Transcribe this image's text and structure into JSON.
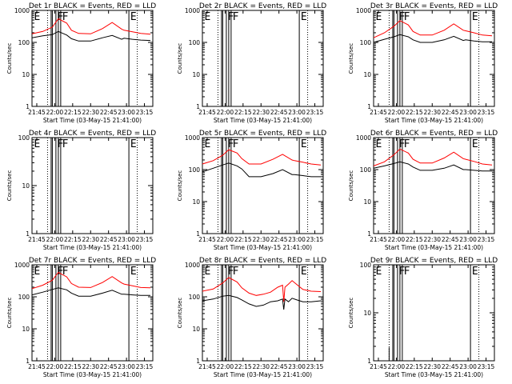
{
  "chart_data": [
    {
      "type": "line",
      "title": "Det 1r BLACK = Events, RED = LLD",
      "xlabel": "Start Time (03-May-15 21:41:00)",
      "ylabel": "Counts/sec",
      "y_log": true,
      "ylim": [
        1,
        1000
      ],
      "xlim": [
        "21:41",
        "23:22"
      ],
      "x_ticks": [
        "21:45",
        "22:00",
        "22:15",
        "22:30",
        "22:45",
        "23:00",
        "23:15"
      ],
      "y_ticks": [
        "1",
        "10",
        "100",
        "1000"
      ],
      "flags": [
        "E",
        "F",
        "F",
        "E"
      ],
      "series": [
        {
          "color": "#000000",
          "x": [
            "21:41",
            "21:50",
            "21:58",
            "22:03",
            "22:10",
            "22:14",
            "22:20",
            "22:30",
            "22:40",
            "22:48",
            "22:56",
            "22:58",
            "23:05",
            "23:12",
            "23:20"
          ],
          "y": [
            140,
            160,
            175,
            220,
            170,
            130,
            110,
            110,
            140,
            165,
            125,
            135,
            125,
            118,
            115
          ]
        },
        {
          "color": "#ff0000",
          "x": [
            "21:41",
            "21:50",
            "21:58",
            "22:03",
            "22:10",
            "22:14",
            "22:20",
            "22:30",
            "22:40",
            "22:48",
            "22:56",
            "22:58",
            "23:05",
            "23:12",
            "23:20"
          ],
          "y": [
            185,
            220,
            300,
            550,
            400,
            240,
            190,
            185,
            270,
            420,
            260,
            240,
            215,
            190,
            180
          ]
        }
      ]
    },
    {
      "type": "line",
      "title": "Det 2r BLACK = Events, RED = LLD",
      "xlabel": "Start Time (03-May-15 21:41:00)",
      "ylabel": "Counts/sec",
      "y_log": true,
      "ylim": [
        1,
        1000
      ],
      "xlim": [
        "21:41",
        "23:22"
      ],
      "x_ticks": [
        "21:45",
        "22:00",
        "22:15",
        "22:30",
        "22:45",
        "23:00",
        "23:15"
      ],
      "y_ticks": [
        "1",
        "10",
        "100",
        "1000"
      ],
      "flags": [
        "E",
        "F",
        "F",
        "E"
      ],
      "series": []
    },
    {
      "type": "line",
      "title": "Det 3r BLACK = Events, RED = LLD",
      "xlabel": "Start Time (03-May-15 21:41:00)",
      "ylabel": "Counts/sec",
      "y_log": true,
      "ylim": [
        1,
        1000
      ],
      "xlim": [
        "21:41",
        "23:22"
      ],
      "x_ticks": [
        "21:45",
        "22:00",
        "22:15",
        "22:30",
        "22:45",
        "23:00",
        "23:15"
      ],
      "y_ticks": [
        "1",
        "10",
        "100",
        "1000"
      ],
      "flags": [
        "E",
        "F",
        "F",
        "E"
      ],
      "series": [
        {
          "color": "#000000",
          "x": [
            "21:41",
            "21:50",
            "21:58",
            "22:03",
            "22:10",
            "22:14",
            "22:20",
            "22:30",
            "22:40",
            "22:48",
            "22:56",
            "22:58",
            "23:05",
            "23:12",
            "23:20"
          ],
          "y": [
            100,
            125,
            150,
            175,
            150,
            120,
            100,
            100,
            120,
            155,
            115,
            120,
            110,
            105,
            105
          ]
        },
        {
          "color": "#ff0000",
          "x": [
            "21:41",
            "21:50",
            "21:58",
            "22:03",
            "22:10",
            "22:14",
            "22:20",
            "22:30",
            "22:40",
            "22:48",
            "22:56",
            "22:58",
            "23:05",
            "23:12",
            "23:20"
          ],
          "y": [
            140,
            200,
            320,
            480,
            350,
            220,
            170,
            170,
            240,
            380,
            240,
            230,
            200,
            170,
            160
          ]
        }
      ]
    },
    {
      "type": "line",
      "title": "Det 4r BLACK = Events, RED = LLD",
      "xlabel": "Start Time (03-May-15 21:41:00)",
      "ylabel": "Counts/sec",
      "y_log": true,
      "ylim": [
        1,
        100
      ],
      "xlim": [
        "21:41",
        "23:22"
      ],
      "x_ticks": [
        "21:45",
        "22:00",
        "22:15",
        "22:30",
        "22:45",
        "23:00",
        "23:15"
      ],
      "y_ticks": [
        "1",
        "10",
        "100"
      ],
      "flags": [
        "E",
        "F",
        "F",
        "E"
      ],
      "series": []
    },
    {
      "type": "line",
      "title": "Det 5r BLACK = Events, RED = LLD",
      "xlabel": "Start Time (03-May-15 21:41:00)",
      "ylabel": "Counts/sec",
      "y_log": true,
      "ylim": [
        1,
        1000
      ],
      "xlim": [
        "21:41",
        "23:22"
      ],
      "x_ticks": [
        "21:45",
        "22:00",
        "22:15",
        "22:30",
        "22:45",
        "23:00",
        "23:15"
      ],
      "y_ticks": [
        "1",
        "10",
        "100",
        "1000"
      ],
      "flags": [
        "E",
        "F",
        "F",
        "E"
      ],
      "series": [
        {
          "color": "#000000",
          "x": [
            "21:41",
            "21:50",
            "21:58",
            "22:03",
            "22:10",
            "22:14",
            "22:20",
            "22:30",
            "22:40",
            "22:48",
            "22:56",
            "22:58",
            "23:05",
            "23:12",
            "23:20"
          ],
          "y": [
            85,
            110,
            140,
            160,
            130,
            105,
            60,
            60,
            75,
            100,
            70,
            70,
            65,
            60,
            60
          ]
        },
        {
          "color": "#ff0000",
          "x": [
            "21:41",
            "21:50",
            "21:58",
            "22:03",
            "22:10",
            "22:14",
            "22:20",
            "22:30",
            "22:40",
            "22:48",
            "22:56",
            "22:58",
            "23:05",
            "23:12",
            "23:20"
          ],
          "y": [
            150,
            190,
            280,
            420,
            330,
            220,
            150,
            150,
            210,
            300,
            200,
            190,
            170,
            150,
            140
          ]
        }
      ]
    },
    {
      "type": "line",
      "title": "Det 6r BLACK = Events, RED = LLD",
      "xlabel": "Start Time (03-May-15 21:41:00)",
      "ylabel": "Counts/sec",
      "y_log": true,
      "ylim": [
        1,
        1000
      ],
      "xlim": [
        "21:41",
        "23:22"
      ],
      "x_ticks": [
        "21:45",
        "22:00",
        "22:15",
        "22:30",
        "22:45",
        "23:00",
        "23:15"
      ],
      "y_ticks": [
        "1",
        "10",
        "100",
        "1000"
      ],
      "flags": [
        "E",
        "F",
        "F",
        "E"
      ],
      "series": [
        {
          "color": "#000000",
          "x": [
            "21:41",
            "21:50",
            "21:58",
            "22:03",
            "22:10",
            "22:14",
            "22:20",
            "22:30",
            "22:40",
            "22:48",
            "22:56",
            "22:58",
            "23:05",
            "23:12",
            "23:20"
          ],
          "y": [
            110,
            130,
            155,
            175,
            150,
            120,
            95,
            95,
            110,
            140,
            100,
            100,
            95,
            90,
            90
          ]
        },
        {
          "color": "#ff0000",
          "x": [
            "21:41",
            "21:50",
            "21:58",
            "22:03",
            "22:10",
            "22:14",
            "22:20",
            "22:30",
            "22:40",
            "22:48",
            "22:56",
            "22:58",
            "23:05",
            "23:12",
            "23:20"
          ],
          "y": [
            130,
            175,
            290,
            440,
            330,
            210,
            160,
            160,
            230,
            350,
            220,
            210,
            180,
            150,
            140
          ]
        }
      ]
    },
    {
      "type": "line",
      "title": "Det 7r BLACK = Events, RED = LLD",
      "xlabel": "Start Time (03-May-15 21:41:00)",
      "ylabel": "Counts/sec",
      "y_log": true,
      "ylim": [
        1,
        1000
      ],
      "xlim": [
        "21:41",
        "23:22"
      ],
      "x_ticks": [
        "21:45",
        "22:00",
        "22:15",
        "22:30",
        "22:45",
        "23:00",
        "23:15"
      ],
      "y_ticks": [
        "1",
        "10",
        "100",
        "1000"
      ],
      "flags": [
        "E",
        "F",
        "F",
        "E"
      ],
      "series": [
        {
          "color": "#000000",
          "x": [
            "21:41",
            "21:50",
            "21:58",
            "22:03",
            "22:10",
            "22:14",
            "22:20",
            "22:30",
            "22:40",
            "22:48",
            "22:56",
            "22:58",
            "23:05",
            "23:12",
            "23:20"
          ],
          "y": [
            115,
            140,
            170,
            190,
            165,
            130,
            105,
            105,
            130,
            160,
            120,
            120,
            115,
            110,
            110
          ]
        },
        {
          "color": "#ff0000",
          "x": [
            "21:41",
            "21:50",
            "21:58",
            "22:03",
            "22:10",
            "22:14",
            "22:20",
            "22:30",
            "22:40",
            "22:48",
            "22:56",
            "22:58",
            "23:05",
            "23:12",
            "23:20"
          ],
          "y": [
            180,
            230,
            330,
            580,
            420,
            260,
            200,
            195,
            280,
            430,
            270,
            250,
            220,
            195,
            190
          ]
        }
      ]
    },
    {
      "type": "line",
      "title": "Det 8r BLACK = Events, RED = LLD",
      "xlabel": "Start Time (03-May-15 21:41:00)",
      "ylabel": "Counts/sec",
      "y_log": true,
      "ylim": [
        1,
        1000
      ],
      "xlim": [
        "21:41",
        "23:22"
      ],
      "x_ticks": [
        "21:45",
        "22:00",
        "22:15",
        "22:30",
        "22:45",
        "23:00",
        "23:15"
      ],
      "y_ticks": [
        "1",
        "10",
        "100",
        "1000"
      ],
      "flags": [
        "E",
        "F",
        "F",
        "E"
      ],
      "series": [
        {
          "color": "#000000",
          "x": [
            "21:41",
            "21:50",
            "21:58",
            "22:03",
            "22:10",
            "22:14",
            "22:20",
            "22:26",
            "22:32",
            "22:38",
            "22:44",
            "22:48",
            "22:49",
            "22:50",
            "22:53",
            "22:56",
            "23:00",
            "23:05",
            "23:12",
            "23:20"
          ],
          "y": [
            75,
            85,
            105,
            110,
            95,
            80,
            60,
            50,
            55,
            70,
            75,
            85,
            40,
            85,
            70,
            90,
            80,
            70,
            70,
            75
          ]
        },
        {
          "color": "#ff0000",
          "x": [
            "21:41",
            "21:50",
            "21:58",
            "22:03",
            "22:10",
            "22:14",
            "22:20",
            "22:26",
            "22:32",
            "22:38",
            "22:44",
            "22:48",
            "22:49",
            "22:50",
            "22:53",
            "22:56",
            "23:00",
            "23:05",
            "23:12",
            "23:20"
          ],
          "y": [
            150,
            175,
            270,
            400,
            290,
            190,
            130,
            110,
            120,
            140,
            200,
            230,
            70,
            200,
            250,
            320,
            240,
            170,
            150,
            145
          ]
        }
      ]
    },
    {
      "type": "line",
      "title": "Det 9r BLACK = Events, RED = LLD",
      "xlabel": "Start Time (03-May-15 21:41:00)",
      "ylabel": "Counts/sec",
      "y_log": true,
      "ylim": [
        1,
        100
      ],
      "xlim": [
        "21:41",
        "23:22"
      ],
      "x_ticks": [
        "21:45",
        "22:00",
        "22:15",
        "22:30",
        "22:45",
        "23:00",
        "23:15"
      ],
      "y_ticks": [
        "1",
        "10",
        "100"
      ],
      "flags": [
        "E",
        "F",
        "F",
        "E"
      ],
      "series": [
        {
          "color": "#000000",
          "x": [
            "21:54",
            "21:54"
          ],
          "y": [
            1,
            1.9
          ]
        }
      ]
    }
  ]
}
